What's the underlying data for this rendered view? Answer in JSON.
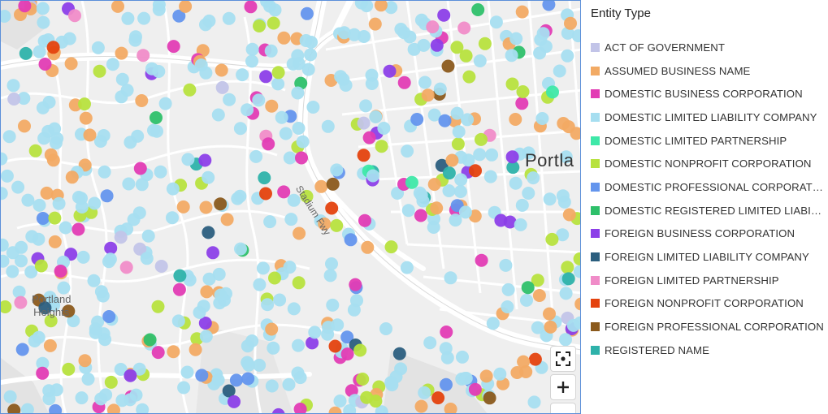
{
  "map": {
    "labels": {
      "neighborhood_line1": "Portland",
      "neighborhood_line2": "Heights",
      "city": "Portla",
      "freeway": "Stadium Fwy"
    },
    "controls": [
      "recenter-icon",
      "zoom-in-icon",
      "zoom-out-icon"
    ],
    "base_colors": {
      "land": "#efefef",
      "road": "#ffffff",
      "park": "#e3e3e3"
    }
  },
  "legend": {
    "title": "Entity Type",
    "items": [
      {
        "label": "ACT OF GOVERNMENT",
        "color": "#c2c4e8"
      },
      {
        "label": "ASSUMED BUSINESS NAME",
        "color": "#f2aa64"
      },
      {
        "label": "DOMESTIC BUSINESS CORPORATION",
        "color": "#e23cb4"
      },
      {
        "label": "DOMESTIC LIMITED LIABILITY COMPANY",
        "color": "#a6def0"
      },
      {
        "label": "DOMESTIC LIMITED PARTNERSHIP",
        "color": "#3ee8a8"
      },
      {
        "label": "DOMESTIC NONPROFIT CORPORATION",
        "color": "#b7e23e"
      },
      {
        "label": "DOMESTIC PROFESSIONAL CORPORATION",
        "color": "#6495ed"
      },
      {
        "label": "DOMESTIC REGISTERED LIMITED LIABILIT…",
        "color": "#2ec06a"
      },
      {
        "label": "FOREIGN BUSINESS CORPORATION",
        "color": "#8c3fe8"
      },
      {
        "label": "FOREIGN LIMITED LIABILITY COMPANY",
        "color": "#2b5e7e"
      },
      {
        "label": "FOREIGN LIMITED PARTNERSHIP",
        "color": "#f08cc8"
      },
      {
        "label": "FOREIGN NONPROFIT CORPORATION",
        "color": "#e4420e"
      },
      {
        "label": "FOREIGN PROFESSIONAL CORPORATION",
        "color": "#8b5a1c"
      },
      {
        "label": "REGISTERED NAME",
        "color": "#2eb2aa"
      }
    ]
  }
}
